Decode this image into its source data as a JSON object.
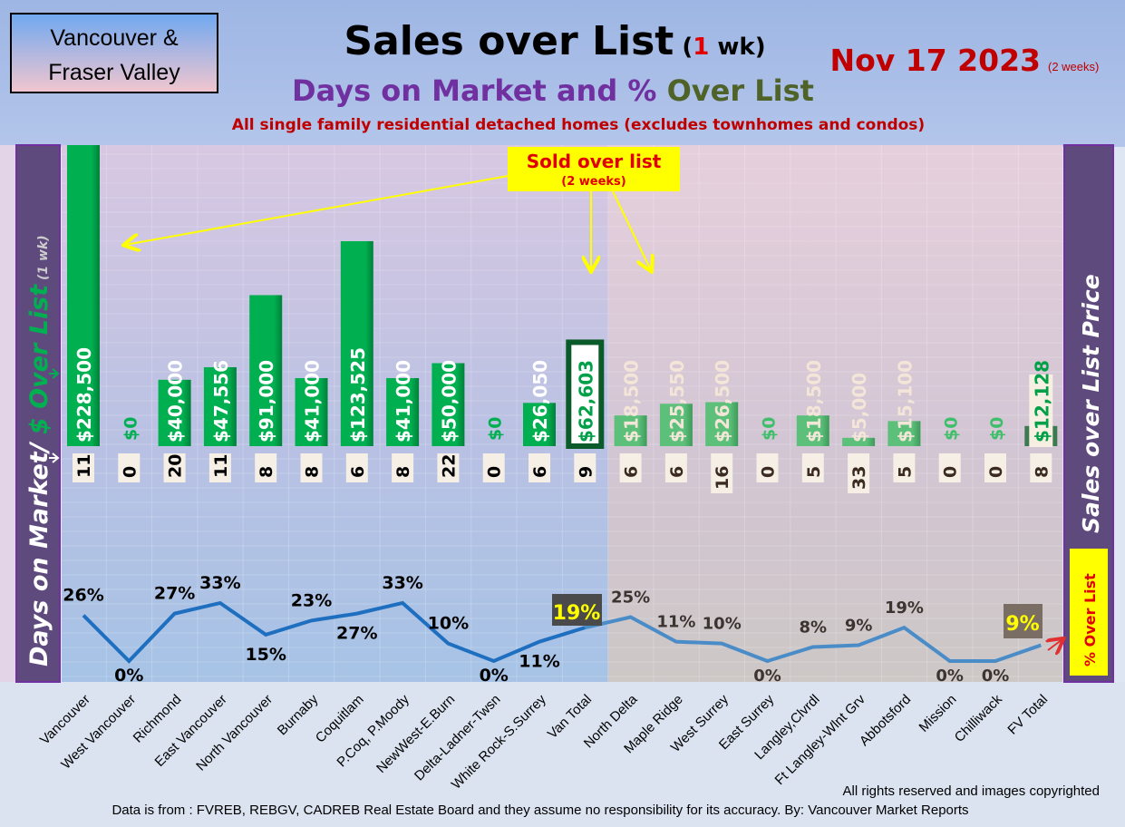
{
  "header": {
    "region_box": [
      "Vancouver &",
      "Fraser Valley"
    ],
    "title": "Sales over List",
    "title_paren_open": "(",
    "title_num": "1",
    "title_wk": " wk)",
    "subtitle_a": "Days on Market and % ",
    "subtitle_b": "Over List",
    "note": "All single family residential detached homes (excludes townhomes and condos)",
    "date": "Nov 17  2023",
    "date_note": "(2 weeks)"
  },
  "annotations": {
    "sold_over_list": "Sold over list",
    "sold_over_list_sub": "(2 weeks)",
    "left_axis_a": "Days on Market/ ",
    "left_axis_b": "$ Over List",
    "left_axis_c": " (1 wk)",
    "right_axis": "Sales over List Price",
    "pct_box": "% Over List",
    "van_total_pct": "19%",
    "fv_total_pct": "9%"
  },
  "footer": {
    "copyright": "All rights reserved and  images copyrighted",
    "source": "Data is from : FVREB, REBGV, CADREB Real Estate Board and they assume no responsibility for its accuracy. By: Vancouver Market Reports"
  },
  "colors": {
    "bar": "#00b050",
    "bar_faded": "#5cbf7a",
    "line_van": "#1f6fc0",
    "line_fv": "#4a8cc8",
    "title_red": "#c00000",
    "purple": "#7030a0"
  },
  "chart_data": {
    "type": "bar+line",
    "title": "Sales over List (1 wk)",
    "categories": [
      "Vancouver",
      "West Vancouver",
      "Richmond",
      "East Vancouver",
      "North Vancouver",
      "Burnaby",
      "Coquitlam",
      "P.Coq, P.Moody",
      "NewWest-E.Burn",
      "Delta-Ladner-Twsn",
      "White Rock-S.Surrey",
      "Van Total",
      "North Delta",
      "Maple Ridge",
      "West Surrey",
      "East Surrey",
      "Langley,Clvrdl",
      "Ft Langley-Wlnt Grv",
      "Abbotsford",
      "Mission",
      "Chilliwack",
      "FV Total"
    ],
    "series": [
      {
        "name": "$ Over List",
        "values": [
          228500,
          0,
          40000,
          47556,
          91000,
          41000,
          123525,
          41000,
          50000,
          0,
          26050,
          62603,
          18500,
          25550,
          26500,
          0,
          18500,
          5000,
          15100,
          0,
          0,
          12128
        ]
      },
      {
        "name": "Days on Market",
        "values": [
          11,
          0,
          20,
          11,
          8,
          8,
          6,
          8,
          22,
          0,
          6,
          9,
          6,
          6,
          16,
          0,
          5,
          33,
          5,
          0,
          0,
          8
        ]
      },
      {
        "name": "% Over List",
        "values": [
          26,
          0,
          27,
          33,
          15,
          23,
          27,
          33,
          10,
          0,
          11,
          19,
          25,
          11,
          10,
          0,
          8,
          9,
          19,
          0,
          0,
          9
        ]
      }
    ]
  }
}
